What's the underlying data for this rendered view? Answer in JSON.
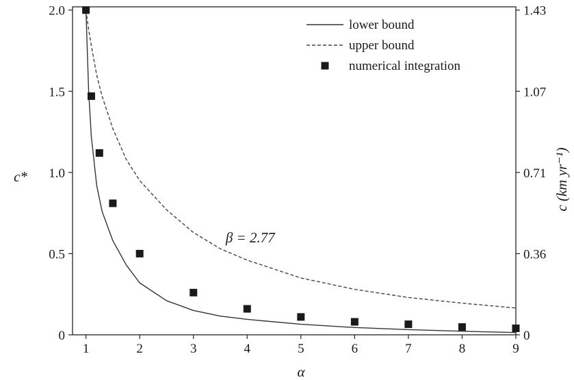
{
  "chart_data": {
    "type": "line",
    "xlabel": "α",
    "ylabel_left": "c*",
    "ylabel_right": "c (km yr⁻¹)",
    "xlim": [
      0.75,
      9
    ],
    "ylim": [
      0,
      2.02
    ],
    "x_ticks": [
      1,
      2,
      3,
      4,
      5,
      6,
      7,
      8,
      9
    ],
    "y_ticks_left": [
      {
        "value": 0,
        "label": "0"
      },
      {
        "value": 0.5,
        "label": "0.5"
      },
      {
        "value": 1.0,
        "label": "1.0"
      },
      {
        "value": 1.5,
        "label": "1.5"
      },
      {
        "value": 2.0,
        "label": "2.0"
      }
    ],
    "y_ticks_right": [
      {
        "value": 0,
        "label": "0"
      },
      {
        "value": 0.5,
        "label": "0.36"
      },
      {
        "value": 1.0,
        "label": "0.71"
      },
      {
        "value": 1.5,
        "label": "1.07"
      },
      {
        "value": 2.0,
        "label": "1.43"
      }
    ],
    "annotation": {
      "text": "β = 2.77",
      "x": 3.6,
      "y": 0.57
    },
    "grid": false,
    "legend_position": "top-right",
    "series": [
      {
        "name": "lower bound",
        "kind": "line",
        "style": "solid",
        "color": "#333333",
        "x": [
          1.0,
          1.05,
          1.1,
          1.2,
          1.3,
          1.5,
          1.75,
          2.0,
          2.5,
          3.0,
          3.5,
          4.0,
          5.0,
          6.0,
          7.0,
          8.0,
          9.0
        ],
        "y": [
          2.0,
          1.5,
          1.22,
          0.92,
          0.76,
          0.58,
          0.43,
          0.32,
          0.21,
          0.15,
          0.115,
          0.095,
          0.065,
          0.045,
          0.032,
          0.022,
          0.014
        ]
      },
      {
        "name": "upper bound",
        "kind": "line",
        "style": "dashed",
        "color": "#444444",
        "x": [
          1.0,
          1.05,
          1.1,
          1.2,
          1.3,
          1.5,
          1.75,
          2.0,
          2.5,
          3.0,
          3.5,
          4.0,
          5.0,
          6.0,
          7.0,
          8.0,
          9.0
        ],
        "y": [
          2.0,
          1.88,
          1.78,
          1.6,
          1.47,
          1.27,
          1.08,
          0.95,
          0.77,
          0.63,
          0.53,
          0.46,
          0.35,
          0.28,
          0.23,
          0.195,
          0.165
        ]
      },
      {
        "name": "numerical integration",
        "kind": "scatter",
        "marker": "square",
        "color": "#1a1a1a",
        "x": [
          1.0,
          1.1,
          1.25,
          1.5,
          2.0,
          3.0,
          4.0,
          5.0,
          6.0,
          7.0,
          8.0,
          9.0
        ],
        "y": [
          2.0,
          1.47,
          1.12,
          0.81,
          0.5,
          0.26,
          0.16,
          0.11,
          0.08,
          0.065,
          0.048,
          0.04
        ]
      }
    ]
  }
}
